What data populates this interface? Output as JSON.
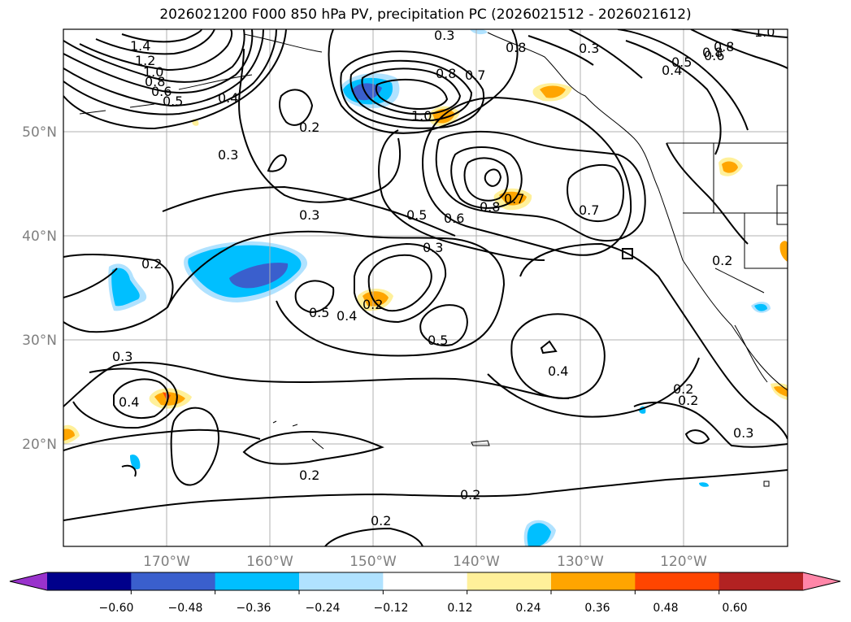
{
  "title": "2026021200 F000 850 hPa PV, precipitation PC (2026021512 - 2026021612)",
  "lat_labels": [
    "50°N",
    "40°N",
    "30°N",
    "20°N"
  ],
  "lon_labels": [
    "170°W",
    "160°W",
    "150°W",
    "140°W",
    "130°W",
    "120°W"
  ],
  "colorbar": {
    "ticks": [
      "−0.60",
      "−0.48",
      "−0.36",
      "−0.24",
      "−0.12",
      "0.12",
      "0.24",
      "0.36",
      "0.48",
      "0.60"
    ],
    "colors": [
      "#9932cc",
      "#00008b",
      "#3a5fcd",
      "#00bfff",
      "#b0e2ff",
      "#ffffff",
      "#fff09a",
      "#ffa500",
      "#ff4500",
      "#b22222",
      "#ff86a8"
    ]
  },
  "contour_labels": [
    "0.3",
    "0.3",
    "1.0",
    "0.8",
    "1.4",
    "1.2",
    "1.0",
    "0.8",
    "0.6",
    "0.5",
    "0.4",
    "0.8",
    "0.7",
    "0.8",
    "0.8",
    "0.5",
    "0.6",
    "0.4",
    "0.2",
    "0.3",
    "1.0",
    "0.3",
    "0.5",
    "0.6",
    "0.8",
    "0.7",
    "0.7",
    "0.2",
    "0.3",
    "0.2",
    "0.5",
    "0.4",
    "0.2",
    "0.5",
    "0.4",
    "0.3",
    "0.4",
    "0.2",
    "0.2",
    "0.3",
    "0.2",
    "0.2",
    "0.2"
  ]
}
